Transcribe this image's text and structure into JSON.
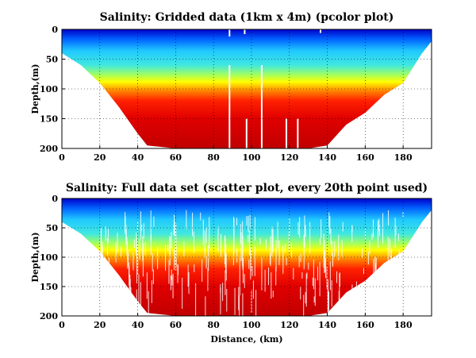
{
  "chart_data": [
    {
      "type": "heatmap",
      "title": "Salinity: Gridded data (1km x 4m) (pcolor plot)",
      "xlabel": "",
      "ylabel": "Depth,(m)",
      "xlim": [
        0,
        195
      ],
      "ylim": [
        200,
        0
      ],
      "y_reversed": true,
      "x_ticks": [
        "0",
        "20",
        "40",
        "60",
        "80",
        "100",
        "120",
        "140",
        "160",
        "180"
      ],
      "y_ticks": [
        "0",
        "50",
        "100",
        "150",
        "200"
      ],
      "grid": true,
      "colormap": "jet",
      "cell_size_km_m": [
        1,
        4
      ],
      "bottom_depth_profile_m": [
        [
          0,
          40
        ],
        [
          10,
          60
        ],
        [
          20,
          90
        ],
        [
          30,
          130
        ],
        [
          40,
          175
        ],
        [
          45,
          195
        ],
        [
          60,
          200
        ],
        [
          130,
          200
        ],
        [
          140,
          195
        ],
        [
          150,
          160
        ],
        [
          160,
          140
        ],
        [
          170,
          110
        ],
        [
          180,
          90
        ],
        [
          190,
          40
        ],
        [
          195,
          20
        ]
      ],
      "mixed_layer_depth_profile_m": [
        [
          0,
          40
        ],
        [
          20,
          55
        ],
        [
          40,
          70
        ],
        [
          60,
          80
        ],
        [
          85,
          88
        ],
        [
          100,
          85
        ],
        [
          120,
          80
        ],
        [
          140,
          70
        ],
        [
          160,
          60
        ],
        [
          180,
          45
        ],
        [
          195,
          30
        ]
      ]
    },
    {
      "type": "scatter",
      "title": "Salinity: Full data set (scatter plot, every 20th point used)",
      "xlabel": "Distance, (km)",
      "ylabel": "Depth,(m)",
      "xlim": [
        0,
        195
      ],
      "ylim": [
        200,
        0
      ],
      "y_reversed": true,
      "x_ticks": [
        "0",
        "20",
        "40",
        "60",
        "80",
        "100",
        "120",
        "140",
        "160",
        "180"
      ],
      "y_ticks": [
        "0",
        "50",
        "100",
        "150",
        "200"
      ],
      "grid": true,
      "colormap": "jet",
      "sampling": "every 20th point"
    }
  ],
  "colors": {
    "fresh": "#0000c8",
    "mid": "#20e0ff",
    "transition": "#ffff00",
    "salty": "#e00000",
    "deep": "#c80000"
  }
}
